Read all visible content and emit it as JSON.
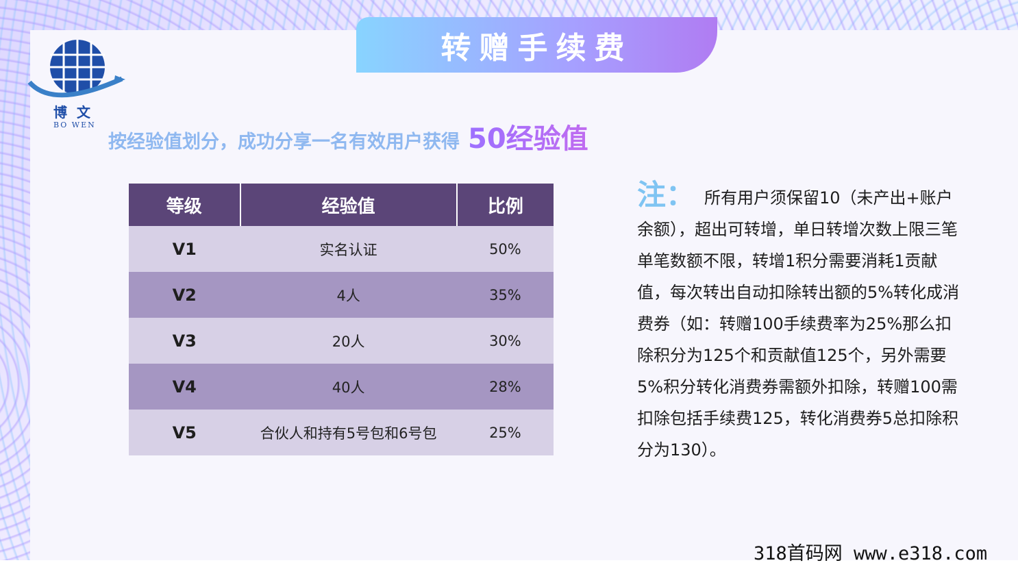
{
  "title": "转赠手续费",
  "logo": {
    "cn": "博文",
    "en": "BO WEN"
  },
  "subtitle": {
    "main": "按经验值划分，成功分享一名有效用户获得",
    "highlight": "50经验值"
  },
  "table": {
    "headers": [
      "等级",
      "经验值",
      "比例"
    ],
    "rows": [
      {
        "level": "V1",
        "exp": "实名认证",
        "ratio": "50%"
      },
      {
        "level": "V2",
        "exp": "4人",
        "ratio": "35%"
      },
      {
        "level": "V3",
        "exp": "20人",
        "ratio": "30%"
      },
      {
        "level": "V4",
        "exp": "40人",
        "ratio": "28%"
      },
      {
        "level": "V5",
        "exp": "合伙人和持有5号包和6号包",
        "ratio": "25%"
      }
    ]
  },
  "note": {
    "label": "注：",
    "text": "所有用户须保留10（未产出+账户余额），超出可转增，单日转增次数上限三笔单笔数额不限，转增1积分需要消耗1贡献值，每次转出自动扣除转出额的5%转化成消费券（如：转赠100手续费率为25%那么扣除积分为125个和贡献值125个，另外需要5%积分转化消费券需额外扣除，转赠100需扣除包括手续费125，转化消费券5总扣除积分为130）。"
  },
  "watermark": "318首码网  www.e318.com",
  "colors": {
    "header": "#5b4578",
    "row_light": "#d7d0e6",
    "row_dark": "#a596c2",
    "accent": "#9a5cf0"
  }
}
